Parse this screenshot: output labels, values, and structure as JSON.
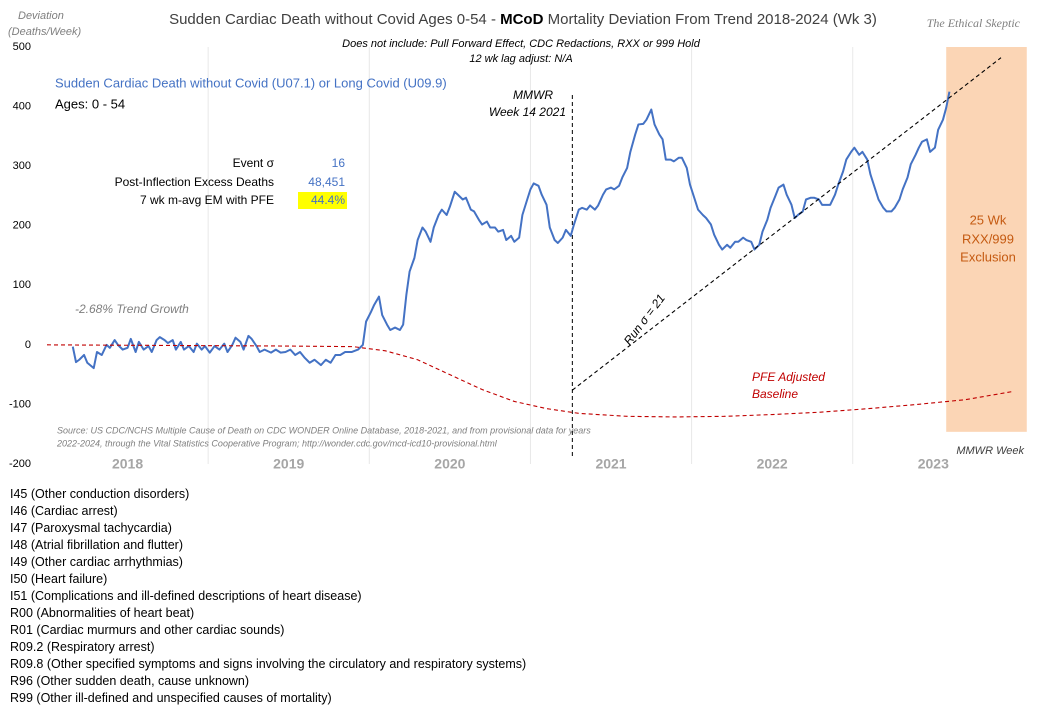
{
  "chart_data": {
    "type": "line",
    "title_parts": [
      "Sudden Cardiac Death without Covid Ages 0-54 - ",
      "MCoD",
      " Mortality Deviation From Trend  2018-2024 (Wk 3)"
    ],
    "subtitle": [
      "Does not include: Pull Forward Effect,  CDC Redactions, RXX or 999 Hold",
      "12 wk lag adjust: N/A"
    ],
    "watermark": "The Ethical Skeptic",
    "ylabel": [
      "Deviation",
      "(Deaths/Week)"
    ],
    "xlim": [
      2018,
      2024.1
    ],
    "ylim": [
      -200,
      500
    ],
    "yticks": [
      -200,
      -100,
      0,
      100,
      200,
      300,
      400,
      500
    ],
    "xticks": [
      {
        "value": 2018.5,
        "label": "2018"
      },
      {
        "value": 2019.5,
        "label": "2019"
      },
      {
        "value": 2020.5,
        "label": "2020"
      },
      {
        "value": 2021.5,
        "label": "2021"
      },
      {
        "value": 2022.5,
        "label": "2022"
      },
      {
        "value": 2023.5,
        "label": "2023"
      }
    ],
    "grid": "x",
    "series": [
      {
        "name": "Sudden Cardiac Death without Covid (U07.1) or Long Covid (U09.9)",
        "color": "#4472c4",
        "dash": false,
        "x": [
          2018.16,
          2018.18,
          2018.2,
          2018.23,
          2018.25,
          2018.29,
          2018.31,
          2018.34,
          2018.37,
          2018.39,
          2018.42,
          2018.44,
          2018.47,
          2018.5,
          2018.52,
          2018.55,
          2018.57,
          2018.6,
          2018.63,
          2018.65,
          2018.68,
          2018.7,
          2018.73,
          2018.75,
          2018.78,
          2018.8,
          2018.83,
          2018.85,
          2018.88,
          2018.91,
          2018.93,
          2018.96,
          2018.98,
          2019.01,
          2019.04,
          2019.07,
          2019.1,
          2019.12,
          2019.15,
          2019.17,
          2019.2,
          2019.22,
          2019.25,
          2019.27,
          2019.3,
          2019.32,
          2019.35,
          2019.39,
          2019.42,
          2019.45,
          2019.48,
          2019.51,
          2019.54,
          2019.57,
          2019.6,
          2019.63,
          2019.66,
          2019.7,
          2019.73,
          2019.76,
          2019.79,
          2019.82,
          2019.85,
          2019.89,
          2019.93,
          2019.96,
          2019.98,
          2020.01,
          2020.03,
          2020.06,
          2020.08,
          2020.11,
          2020.13,
          2020.16,
          2020.19,
          2020.21,
          2020.23,
          2020.25,
          2020.28,
          2020.3,
          2020.33,
          2020.35,
          2020.38,
          2020.4,
          2020.43,
          2020.45,
          2020.48,
          2020.5,
          2020.53,
          2020.55,
          2020.58,
          2020.6,
          2020.63,
          2020.65,
          2020.68,
          2020.7,
          2020.73,
          2020.75,
          2020.78,
          2020.8,
          2020.83,
          2020.85,
          2020.88,
          2020.9,
          2020.93,
          2020.95,
          2020.98,
          2021.0,
          2021.02,
          2021.05,
          2021.07,
          2021.1,
          2021.12,
          2021.15,
          2021.17,
          2021.2,
          2021.22,
          2021.25,
          2021.27,
          2021.3,
          2021.32,
          2021.35,
          2021.37,
          2021.4,
          2021.42,
          2021.45,
          2021.47,
          2021.5,
          2021.52,
          2021.55,
          2021.57,
          2021.6,
          2021.62,
          2021.65,
          2021.67,
          2021.7,
          2021.72,
          2021.75,
          2021.77,
          2021.8,
          2021.82,
          2021.84,
          2021.87,
          2021.89,
          2021.92,
          2021.94,
          2021.97,
          2021.99,
          2022.02,
          2022.04,
          2022.07,
          2022.09,
          2022.12,
          2022.14,
          2022.17,
          2022.19,
          2022.22,
          2022.24,
          2022.27,
          2022.29,
          2022.32,
          2022.34,
          2022.37,
          2022.39,
          2022.42,
          2022.44,
          2022.47,
          2022.49,
          2022.52,
          2022.54,
          2022.57,
          2022.59,
          2022.62,
          2022.64,
          2022.66,
          2022.69,
          2022.71,
          2022.74,
          2022.76,
          2022.79,
          2022.81,
          2022.84,
          2022.86,
          2022.89,
          2022.91,
          2022.94,
          2022.96,
          2022.99,
          2023.01,
          2023.04,
          2023.06,
          2023.09,
          2023.11,
          2023.14,
          2023.16,
          2023.19,
          2023.21,
          2023.24,
          2023.26,
          2023.29,
          2023.31,
          2023.34,
          2023.36,
          2023.39,
          2023.41,
          2023.43,
          2023.46,
          2023.48,
          2023.51,
          2023.53,
          2023.56,
          2023.58,
          2023.6
        ],
        "values": [
          -3,
          -29,
          -25,
          -17,
          -30,
          -39,
          -12,
          -17,
          0,
          -5,
          8,
          0,
          -8,
          -5,
          10,
          -12,
          5,
          -8,
          -2,
          -12,
          8,
          13,
          8,
          3,
          8,
          -8,
          5,
          -8,
          -2,
          -12,
          2,
          -8,
          -2,
          -13,
          -2,
          -8,
          2,
          -12,
          0,
          12,
          5,
          -8,
          15,
          10,
          -2,
          -12,
          -8,
          -13,
          -8,
          -13,
          -12,
          -8,
          -17,
          -12,
          -22,
          -30,
          -25,
          -34,
          -25,
          -30,
          -17,
          -17,
          -12,
          -12,
          -8,
          0,
          39,
          55,
          67,
          81,
          50,
          34,
          25,
          29,
          25,
          34,
          84,
          123,
          146,
          176,
          197,
          190,
          173,
          197,
          218,
          227,
          218,
          232,
          257,
          252,
          244,
          247,
          227,
          224,
          210,
          202,
          207,
          197,
          197,
          190,
          193,
          176,
          183,
          173,
          180,
          218,
          244,
          261,
          271,
          267,
          252,
          235,
          197,
          176,
          171,
          180,
          193,
          183,
          202,
          227,
          230,
          227,
          234,
          227,
          234,
          252,
          261,
          264,
          261,
          267,
          281,
          297,
          324,
          353,
          370,
          371,
          378,
          395,
          370,
          353,
          345,
          311,
          311,
          308,
          314,
          314,
          297,
          269,
          244,
          227,
          218,
          213,
          202,
          185,
          168,
          160,
          168,
          163,
          173,
          173,
          180,
          176,
          173,
          160,
          168,
          190,
          210,
          230,
          250,
          264,
          269,
          252,
          235,
          213,
          218,
          224,
          244,
          247,
          247,
          244,
          235,
          235,
          235,
          252,
          269,
          291,
          311,
          324,
          331,
          319,
          324,
          311,
          286,
          261,
          244,
          230,
          224,
          224,
          230,
          244,
          261,
          281,
          303,
          319,
          331,
          341,
          345,
          324,
          331,
          361,
          378,
          398,
          425
        ]
      },
      {
        "color": "#c00000",
        "dash": true,
        "x": [
          2018,
          2019.5,
          2019.9,
          2020.1,
          2020.3,
          2020.5,
          2020.7,
          2020.9,
          2021.1,
          2021.3,
          2021.6,
          2021.9,
          2022.2,
          2022.5,
          2022.8,
          2023.1,
          2023.4,
          2023.7,
          2024.0
        ],
        "values": [
          0,
          -2,
          -3,
          -10,
          -25,
          -50,
          -75,
          -95,
          -107,
          -115,
          -120,
          -121,
          -120,
          -117,
          -113,
          -107,
          -100,
          -92,
          -78
        ]
      },
      {
        "color": "#000000",
        "dash": true,
        "x": [
          2021.26,
          2023.92
        ],
        "values": [
          -76,
          482
        ]
      }
    ],
    "vline": 2021.26,
    "shade": {
      "x": [
        2023.58,
        2024.08
      ],
      "y": [
        -146,
        500
      ],
      "color": "#fbd5b5"
    },
    "stats": [
      {
        "label": "Event σ",
        "value": "16"
      },
      {
        "label": "Post-Inflection Excess Deaths",
        "value": "48,451"
      },
      {
        "label": "7 wk m-avg EM with PFE",
        "value": "44.4%"
      }
    ],
    "annotations": {
      "ages": "Ages: 0 - 54",
      "trend_growth": "-2.68% Trend Growth",
      "marker": [
        "MMWR",
        "Week 14 2021"
      ],
      "run": "Run σ = 21",
      "baseline": [
        "PFE Adjusted",
        "Baseline"
      ],
      "exclusion": [
        "25 Wk",
        "RXX/999",
        "Exclusion"
      ],
      "source": [
        "Source: US CDC/NCHS Multiple Cause of Death on CDC WONDER Online Database, 2018-2021, and from provisional data for years",
        "2022-2024, through the Vital Statistics Cooperative Program; http://wonder.cdc.gov/mcd-icd10-provisional.html"
      ],
      "x_unit": "MMWR Week"
    }
  },
  "codes": [
    "I45 (Other conduction disorders)",
    "I46 (Cardiac arrest)",
    "I47 (Paroxysmal tachycardia)",
    "I48 (Atrial fibrillation and flutter)",
    "I49 (Other cardiac arrhythmias)",
    "I50 (Heart failure)",
    "I51 (Complications and ill-defined descriptions of heart disease)",
    "R00 (Abnormalities of heart beat)",
    "R01 (Cardiac murmurs and other cardiac sounds)",
    "R09.2 (Respiratory arrest)",
    "R09.8 (Other specified symptoms and signs involving the circulatory and respiratory systems)",
    "R96 (Other sudden death, cause unknown)",
    "R99 (Other ill-defined and unspecified causes of mortality)"
  ]
}
